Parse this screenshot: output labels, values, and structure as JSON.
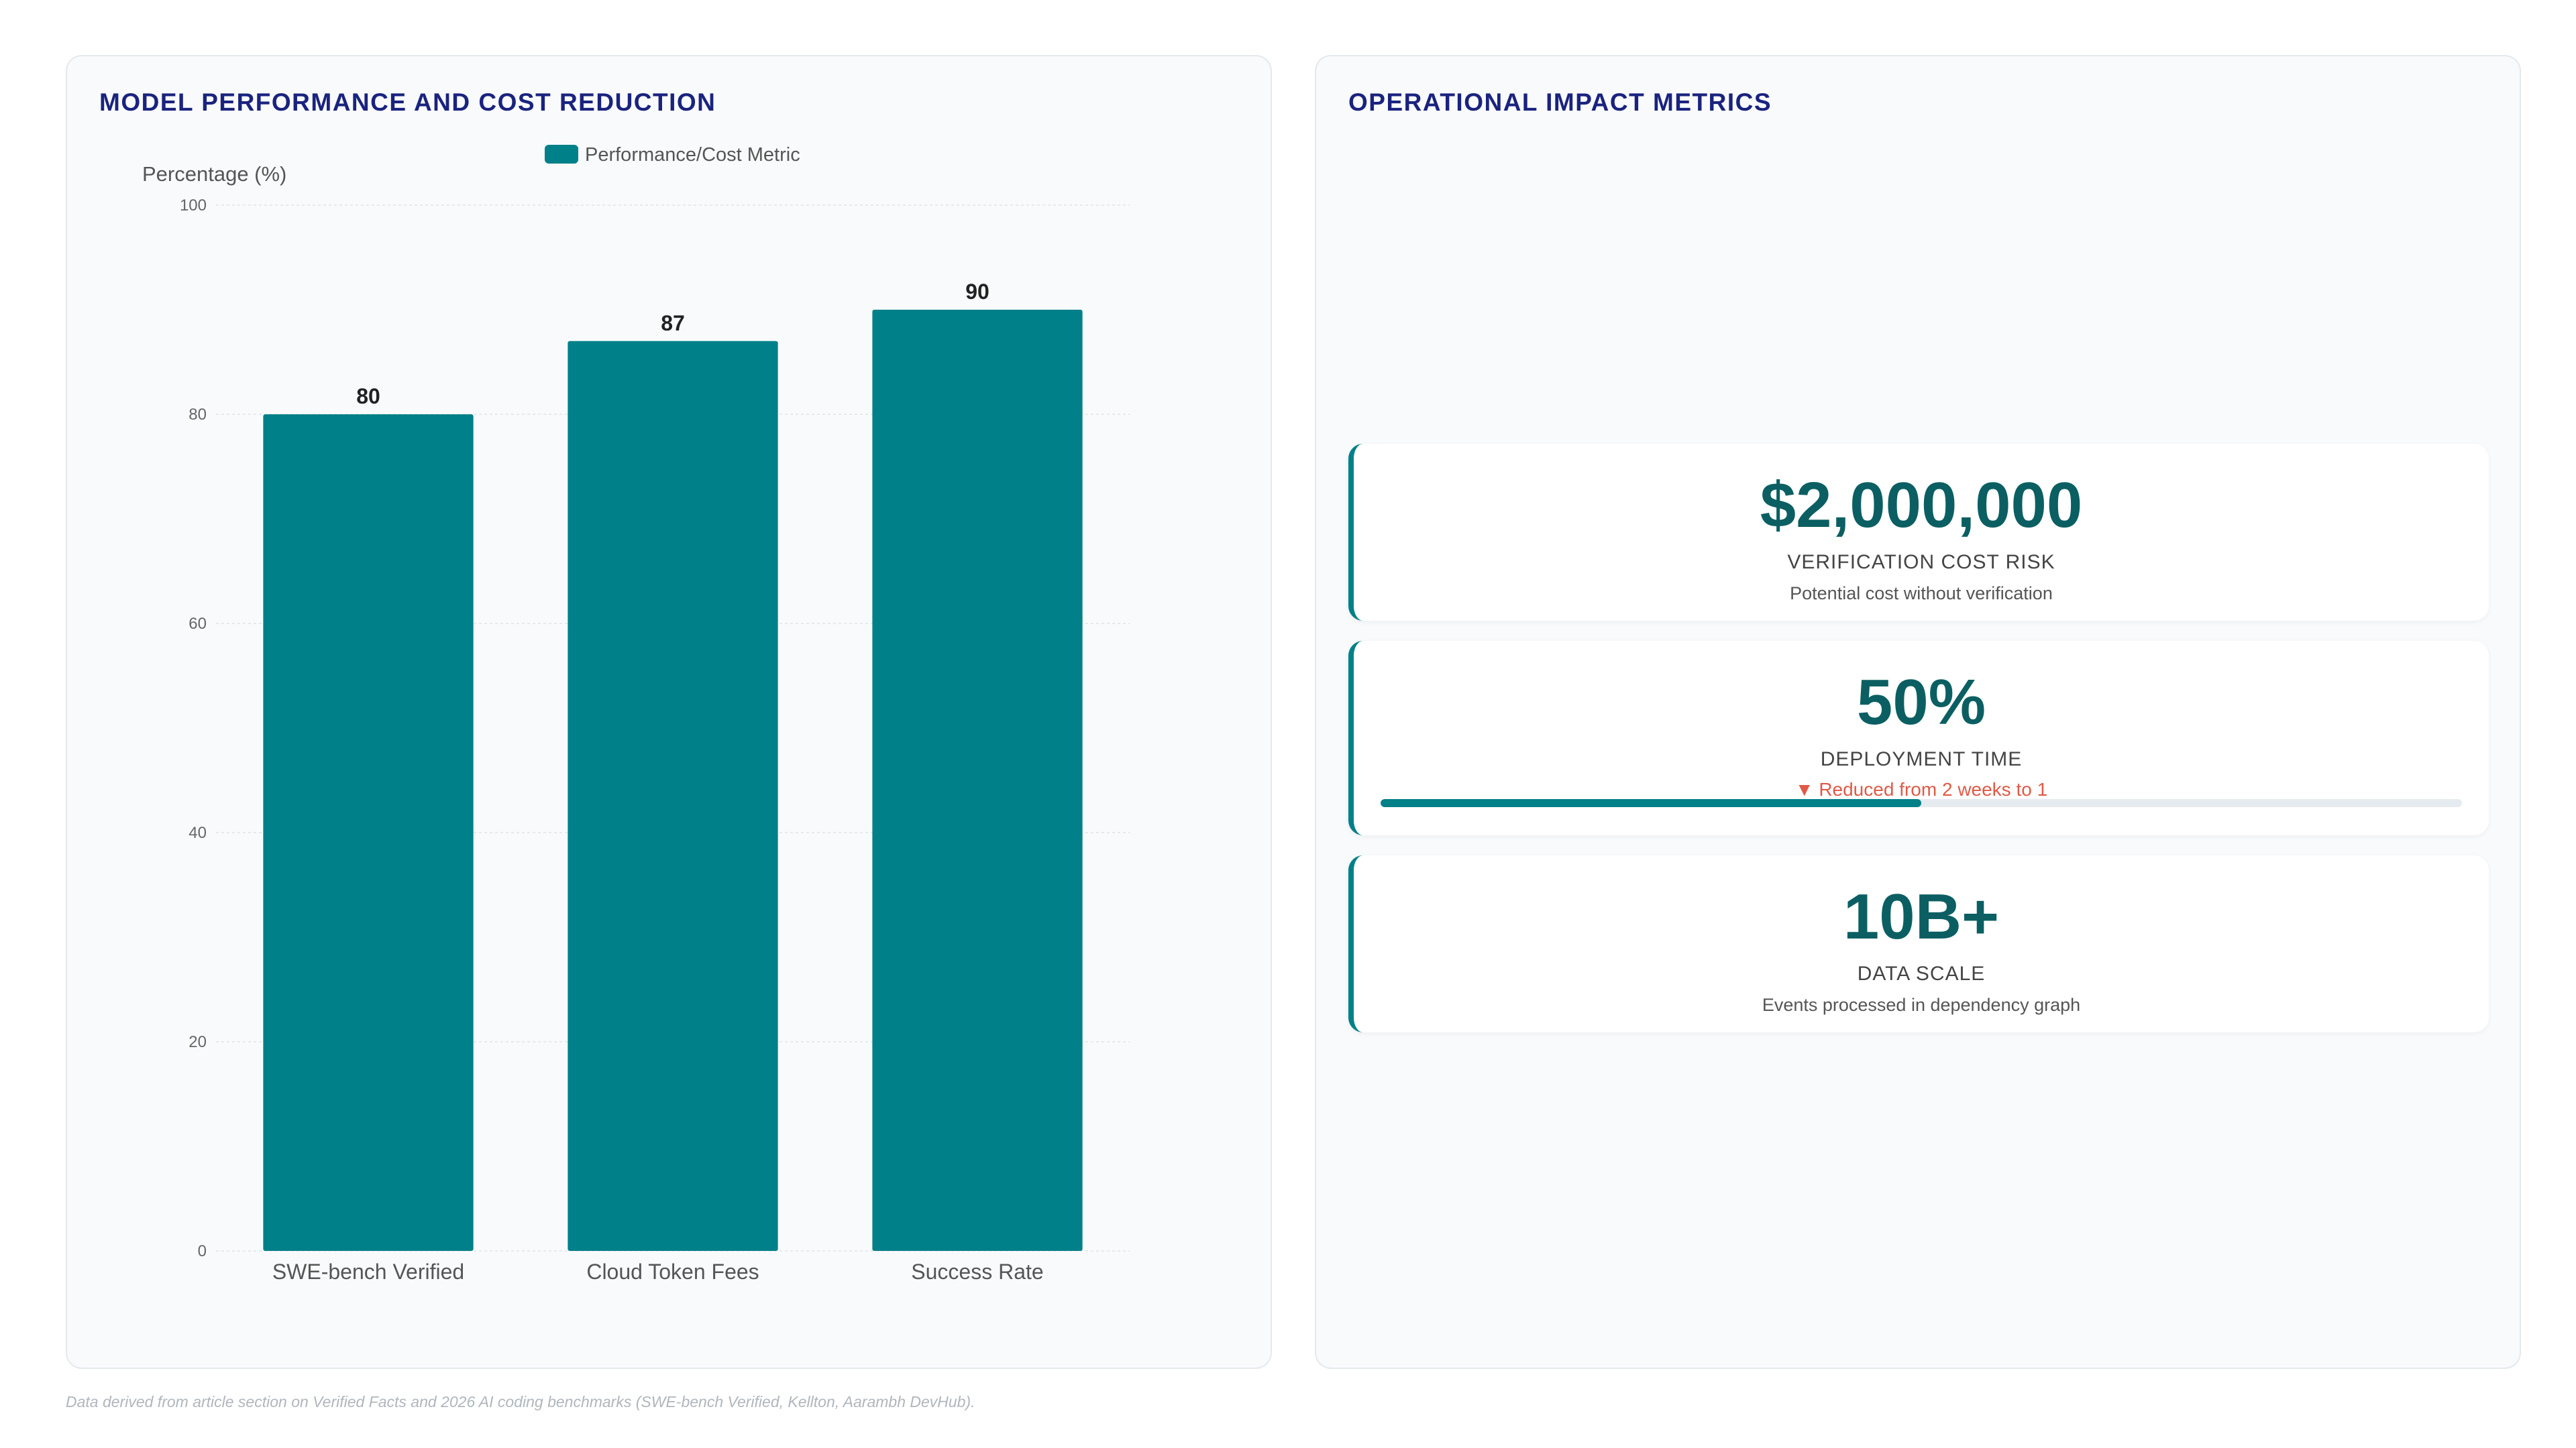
{
  "left_panel": {
    "title": "MODEL PERFORMANCE AND COST REDUCTION"
  },
  "right_panel": {
    "title": "OPERATIONAL IMPACT METRICS"
  },
  "chart_data": {
    "type": "bar",
    "categories": [
      "SWE-bench Verified",
      "Cloud Token Fees",
      "Success Rate"
    ],
    "series": [
      {
        "name": "Performance/Cost Metric",
        "values": [
          80,
          87,
          90
        ]
      }
    ],
    "ylabel": "Percentage (%)",
    "ylim": [
      0,
      100
    ],
    "yticks": [
      0,
      20,
      40,
      60,
      80,
      100
    ],
    "grid": true,
    "legend": "top-center",
    "color": "#008088"
  },
  "metrics": [
    {
      "value": "$2,000,000",
      "label": "VERIFICATION COST RISK",
      "sub": "Potential cost without verification"
    },
    {
      "value": "50%",
      "label": "DEPLOYMENT TIME",
      "trend": "▼ Reduced from 2 weeks to 1",
      "progress_fraction": 0.5
    },
    {
      "value": "10B+",
      "label": "DATA SCALE",
      "sub": "Events processed in dependency graph"
    }
  ],
  "colors": {
    "accent": "#008088",
    "title": "#1a237e",
    "value": "#0b5f62",
    "trend": "#e05a47"
  },
  "footnote": "Data derived from article section on Verified Facts and 2026 AI coding benchmarks (SWE-bench Verified, Kellton, Aarambh DevHub)."
}
